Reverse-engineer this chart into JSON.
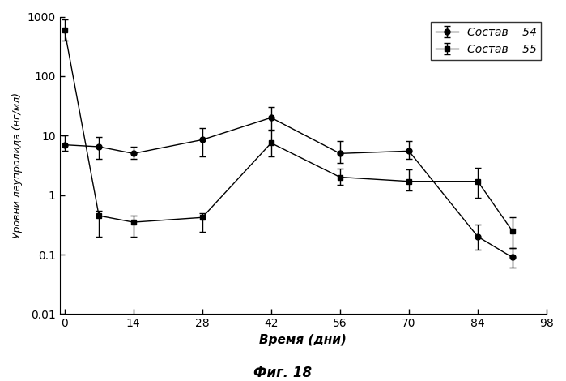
{
  "title": "Фиг. 18",
  "xlabel": "Время (дни)",
  "ylabel": "Уровни леупролида (нг/мл)",
  "xlim": [
    -1,
    98
  ],
  "ylim_log": [
    0.01,
    1000
  ],
  "xticks": [
    0,
    14,
    28,
    42,
    56,
    70,
    84,
    98
  ],
  "yticks": [
    0.01,
    0.1,
    1,
    10,
    100,
    1000
  ],
  "ytick_labels": [
    "0.01",
    "0.1",
    "1",
    "10",
    "100",
    "1000"
  ],
  "series54": {
    "label": "Состав    54",
    "x": [
      0,
      7,
      14,
      28,
      42,
      56,
      70,
      84,
      91
    ],
    "y": [
      7.0,
      6.5,
      5.0,
      8.5,
      20.0,
      5.0,
      5.5,
      0.2,
      0.09
    ],
    "yerr_low": [
      1.5,
      2.5,
      1.0,
      4.0,
      8.0,
      1.5,
      1.5,
      0.08,
      0.03
    ],
    "yerr_high": [
      3.0,
      3.0,
      1.5,
      5.0,
      10.0,
      3.0,
      2.5,
      0.12,
      0.04
    ],
    "color": "#000000",
    "marker": "o"
  },
  "series55": {
    "label": "Состав    55",
    "x": [
      0,
      7,
      14,
      28,
      42,
      56,
      70,
      84,
      91
    ],
    "y": [
      600.0,
      0.45,
      0.35,
      0.42,
      7.5,
      2.0,
      1.7,
      1.7,
      0.25
    ],
    "yerr_low": [
      200.0,
      0.25,
      0.15,
      0.18,
      3.0,
      0.5,
      0.5,
      0.8,
      0.12
    ],
    "yerr_high": [
      300.0,
      0.1,
      0.1,
      0.08,
      5.0,
      0.8,
      1.0,
      1.2,
      0.18
    ],
    "color": "#000000",
    "marker": "s"
  },
  "legend_loc": "upper right",
  "background_color": "#ffffff",
  "figsize": [
    6.99,
    4.7
  ],
  "dpi": 100
}
